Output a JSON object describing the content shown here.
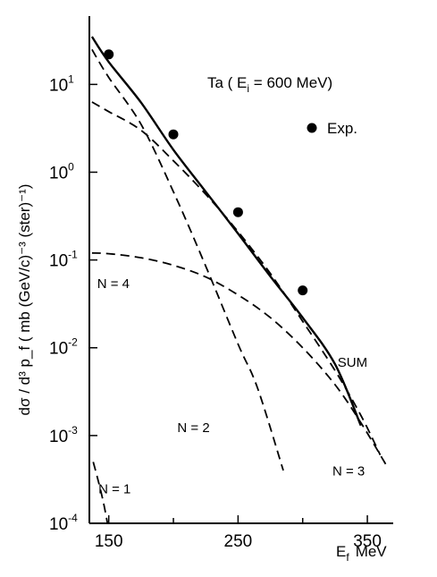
{
  "chart_data": {
    "type": "line",
    "title": "Ta ( E",
    "title_sub": "i",
    "title_tail": " = 600 MeV)",
    "xlabel": "E",
    "xlabel_sub": "f",
    "xlabel_unit": "MeV",
    "ylabel": "dσ / d³ p_f ( mb (GeV/c)⁻³ (ster)⁻¹)",
    "y_scale": "log",
    "xlim": [
      135,
      370
    ],
    "ylim": [
      0.0001,
      60
    ],
    "x_ticks": [
      150,
      250,
      350
    ],
    "x_tick_labels": [
      "150",
      "250",
      "350"
    ],
    "y_ticks": [
      0.0001,
      0.001,
      0.01,
      0.1,
      1,
      10
    ],
    "y_tick_labels": [
      {
        "base": "10",
        "exp": "-4"
      },
      {
        "base": "10",
        "exp": "-3"
      },
      {
        "base": "10",
        "exp": "-2"
      },
      {
        "base": "10",
        "exp": "-1"
      },
      {
        "base": "10",
        "exp": "0"
      },
      {
        "base": "10",
        "exp": "1"
      }
    ],
    "legend": {
      "marker": "filled-circle",
      "label": "Exp.",
      "placement": "top-right"
    },
    "experimental_points": [
      {
        "x": 150,
        "y": 22
      },
      {
        "x": 200,
        "y": 2.7
      },
      {
        "x": 250,
        "y": 0.35
      },
      {
        "x": 300,
        "y": 0.045
      }
    ],
    "series": [
      {
        "name": "SUM",
        "style": "solid",
        "x": [
          137,
          150,
          175,
          200,
          225,
          250,
          275,
          300,
          325,
          345
        ],
        "y": [
          35,
          18,
          6.2,
          1.8,
          0.6,
          0.2,
          0.065,
          0.022,
          0.0065,
          0.0013
        ]
      },
      {
        "name": "N=1",
        "style": "dashed",
        "x": [
          138,
          142,
          146,
          149
        ],
        "y": [
          0.0005,
          0.0003,
          0.00017,
          0.0001
        ]
      },
      {
        "name": "N=2",
        "style": "dashed",
        "x": [
          137,
          150,
          175,
          200,
          225,
          250,
          265,
          285
        ],
        "y": [
          25,
          12,
          3.5,
          0.6,
          0.085,
          0.011,
          0.0035,
          0.0004
        ]
      },
      {
        "name": "N=3",
        "style": "dashed",
        "x": [
          137,
          150,
          175,
          200,
          225,
          250,
          275,
          300,
          325,
          345,
          360
        ],
        "y": [
          6.3,
          4.9,
          3.0,
          1.35,
          0.56,
          0.21,
          0.07,
          0.02,
          0.0055,
          0.0017,
          0.0006
        ]
      },
      {
        "name": "N=4",
        "style": "dashed",
        "x": [
          137,
          150,
          175,
          200,
          225,
          250,
          275,
          300,
          325,
          345,
          365
        ],
        "y": [
          0.12,
          0.118,
          0.106,
          0.087,
          0.064,
          0.04,
          0.022,
          0.01,
          0.0038,
          0.0014,
          0.00045
        ]
      }
    ],
    "curve_labels": [
      {
        "series": "N=4",
        "text": "N = 4",
        "x": 141,
        "y": 0.048
      },
      {
        "series": "N=2",
        "text": "N = 2",
        "x": 203,
        "y": 0.0011
      },
      {
        "series": "N=1",
        "text": "N = 1",
        "x": 142,
        "y": 0.00022
      },
      {
        "series": "N=3",
        "text": "N = 3",
        "x": 323,
        "y": 0.00035
      },
      {
        "series": "SUM",
        "text": "SUM",
        "x": 327,
        "y": 0.0061
      }
    ]
  }
}
